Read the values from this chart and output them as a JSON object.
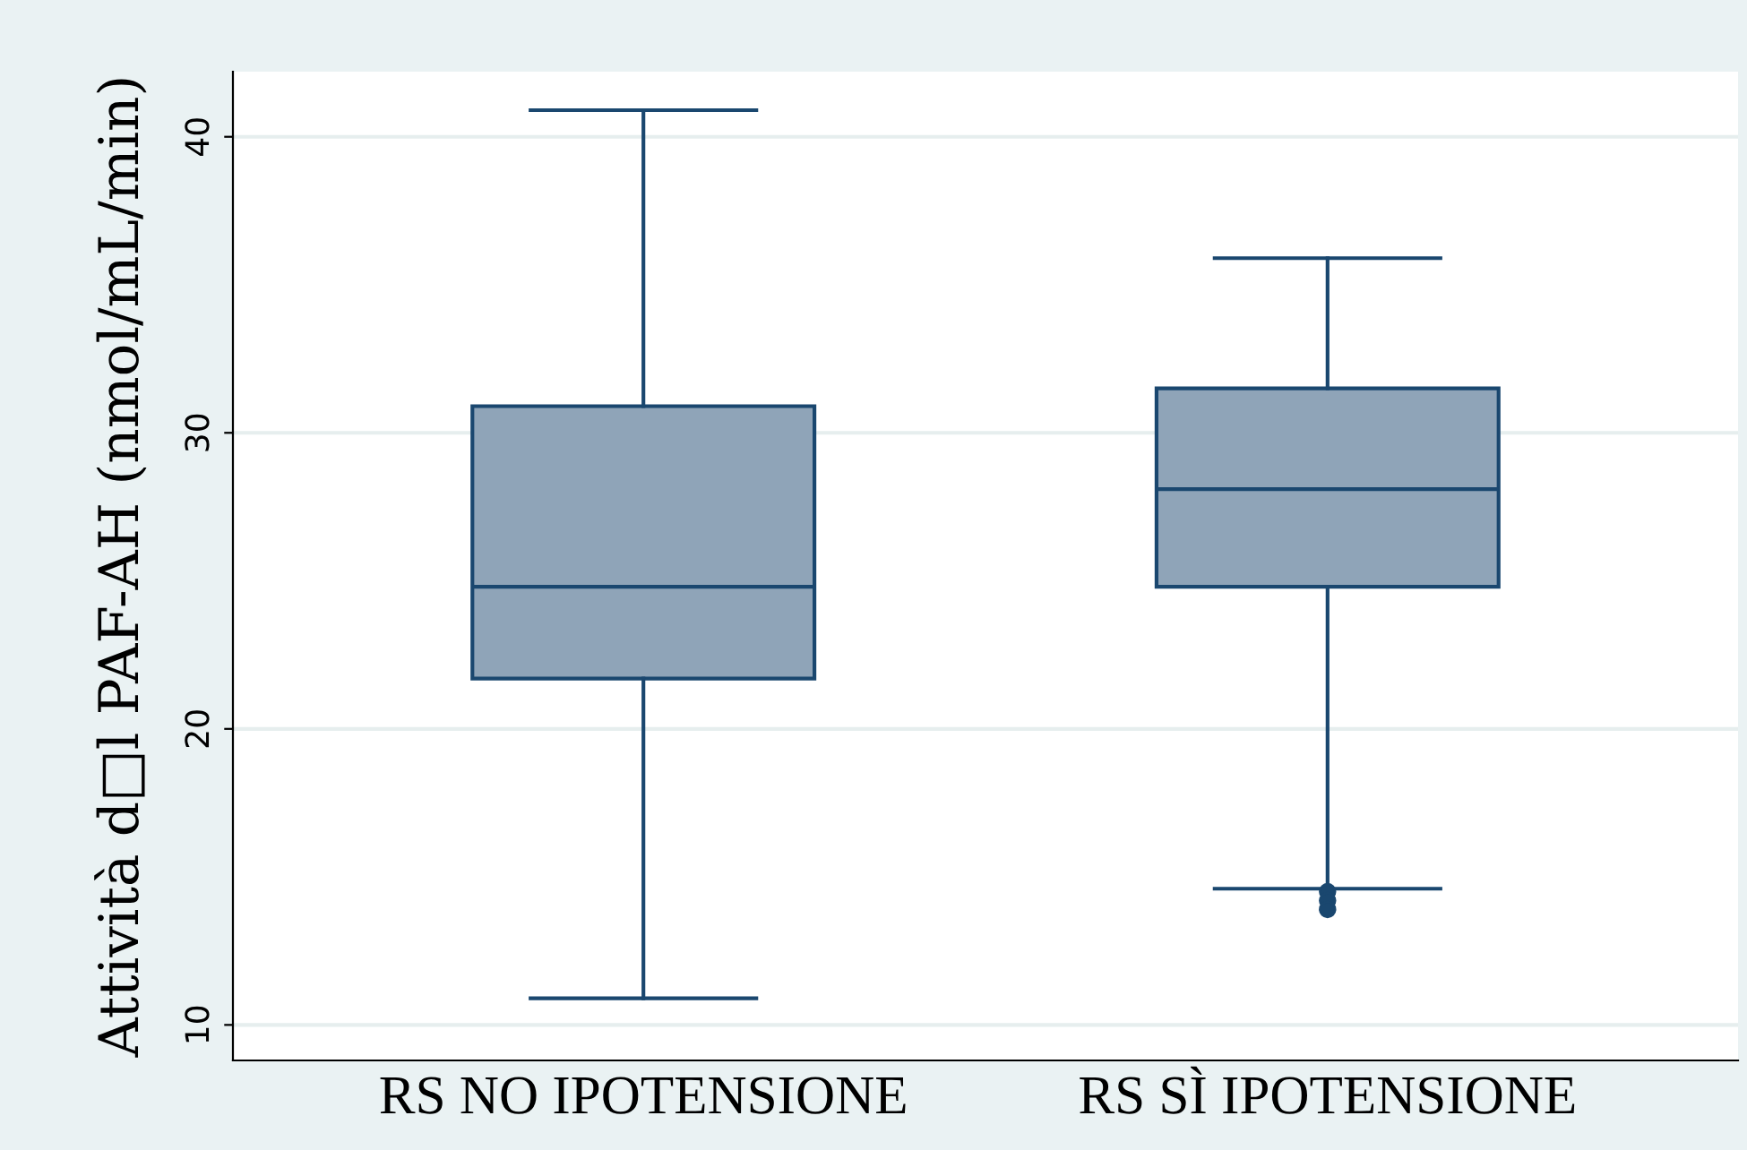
{
  "chart_data": {
    "type": "box",
    "ylabel": "Attività d□l PAF-AH (nmol/mL/min)",
    "categories": [
      "RS NO IPOTENSIONE",
      "RS SÌ IPOTENSIONE"
    ],
    "boxes": [
      {
        "low": 10.9,
        "q1": 21.7,
        "median": 24.8,
        "q3": 30.9,
        "high": 40.9
      },
      {
        "low": 14.6,
        "q1": 24.8,
        "median": 28.1,
        "q3": 31.5,
        "high": 35.9,
        "outliers": [
          14.5,
          14.2,
          13.9
        ]
      }
    ],
    "color": "#8fa4b8",
    "ylim": [
      8.8,
      42.2
    ],
    "yticks": [
      10,
      20,
      30,
      40
    ],
    "grid": "y"
  }
}
